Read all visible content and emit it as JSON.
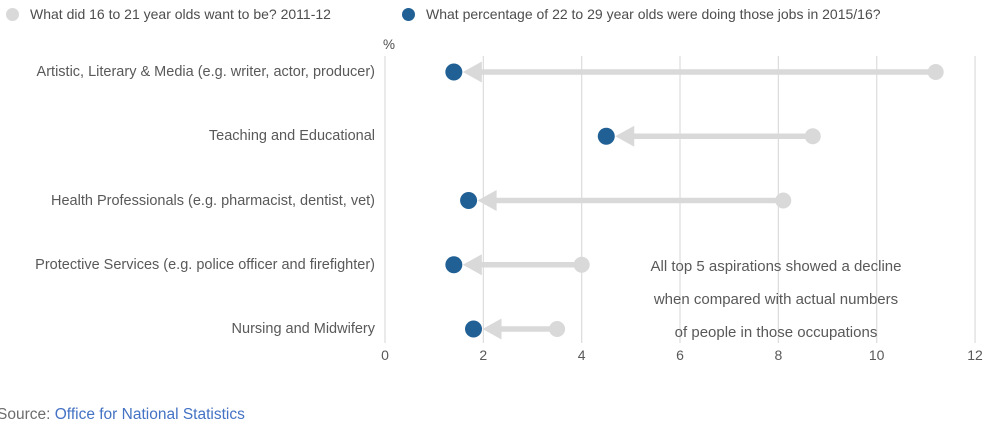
{
  "chart_data": {
    "type": "dumbbell-arrow",
    "title": "",
    "unit_label": "%",
    "categories": [
      "Artistic, Literary & Media (e.g. writer, actor, producer)",
      "Teaching and Educational",
      "Health Professionals (e.g. pharmacist, dentist, vet)",
      "Protective Services (e.g. police officer and firefighter)",
      "Nursing and Midwifery"
    ],
    "series": [
      {
        "name": "What did 16 to 21 year olds want to be? 2011-12",
        "role": "aspiration-2011-12",
        "values": [
          11.2,
          8.7,
          8.1,
          4.0,
          3.5
        ]
      },
      {
        "name": "What percentage of 22 to 29 year olds were doing those jobs in 2015/16?",
        "role": "actual-2015-16",
        "values": [
          1.4,
          4.5,
          1.7,
          1.4,
          1.8
        ]
      }
    ],
    "x_axis": {
      "ticks": [
        0,
        2,
        4,
        6,
        8,
        10,
        12
      ],
      "range": [
        0,
        12
      ]
    },
    "grid": "vertical",
    "legend_position": "top",
    "annotation": "All top 5 aspirations showed a decline\nwhen compared with actual numbers\nof people in those occupations"
  },
  "source": {
    "prefix": "Source: ",
    "link": "Office for National Statistics"
  },
  "colors": {
    "aspiration_gray": "#d9d9d9",
    "actual_blue": "#206095",
    "grid": "#dcdcdc",
    "category_text": "#595959",
    "legend_text": "#4d4d4d",
    "source_text": "#6d6d6d",
    "link_blue": "#4472c4"
  }
}
